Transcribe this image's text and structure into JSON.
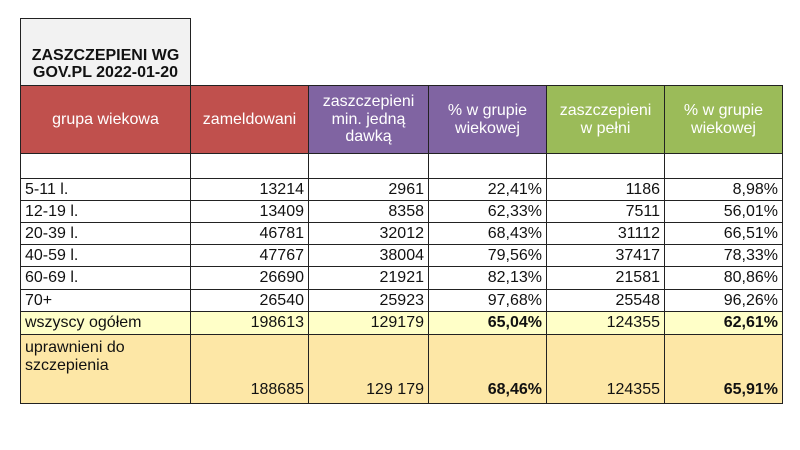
{
  "title": [
    "ZASZCZEPIENI WG",
    "GOV.PL 2022-01-20"
  ],
  "table": {
    "header": [
      [
        "grupa wiekowa"
      ],
      [
        "zameldowani"
      ],
      [
        "zaszczepieni",
        "min. jedną",
        "dawką"
      ],
      [
        "% w grupie",
        "wiekowej"
      ],
      [
        "zaszczepieni",
        "w pełni"
      ],
      [
        "% w grupie",
        "wiekowej"
      ]
    ],
    "rows": [
      [
        "5-11 l.",
        "13214",
        "2961",
        "22,41%",
        "1186",
        "8,98%"
      ],
      [
        "12-19 l.",
        "13409",
        "8358",
        "62,33%",
        "7511",
        "56,01%"
      ],
      [
        "20-39 l.",
        "46781",
        "32012",
        "68,43%",
        "31112",
        "66,51%"
      ],
      [
        "40-59 l.",
        "47767",
        "38004",
        "79,56%",
        "37417",
        "78,33%"
      ],
      [
        "60-69 l.",
        "26690",
        "21921",
        "82,13%",
        "21581",
        "80,86%"
      ],
      [
        "70+",
        "26540",
        "25923",
        "97,68%",
        "25548",
        "96,26%"
      ],
      [
        "wszyscy ogółem",
        "198613",
        "129179",
        "65,04%",
        "124355",
        "62,61%"
      ],
      [
        [
          "uprawnieni do",
          "szczepienia"
        ],
        "188685",
        "129 179",
        "68,46%",
        "124355",
        "65,91%"
      ]
    ]
  }
}
